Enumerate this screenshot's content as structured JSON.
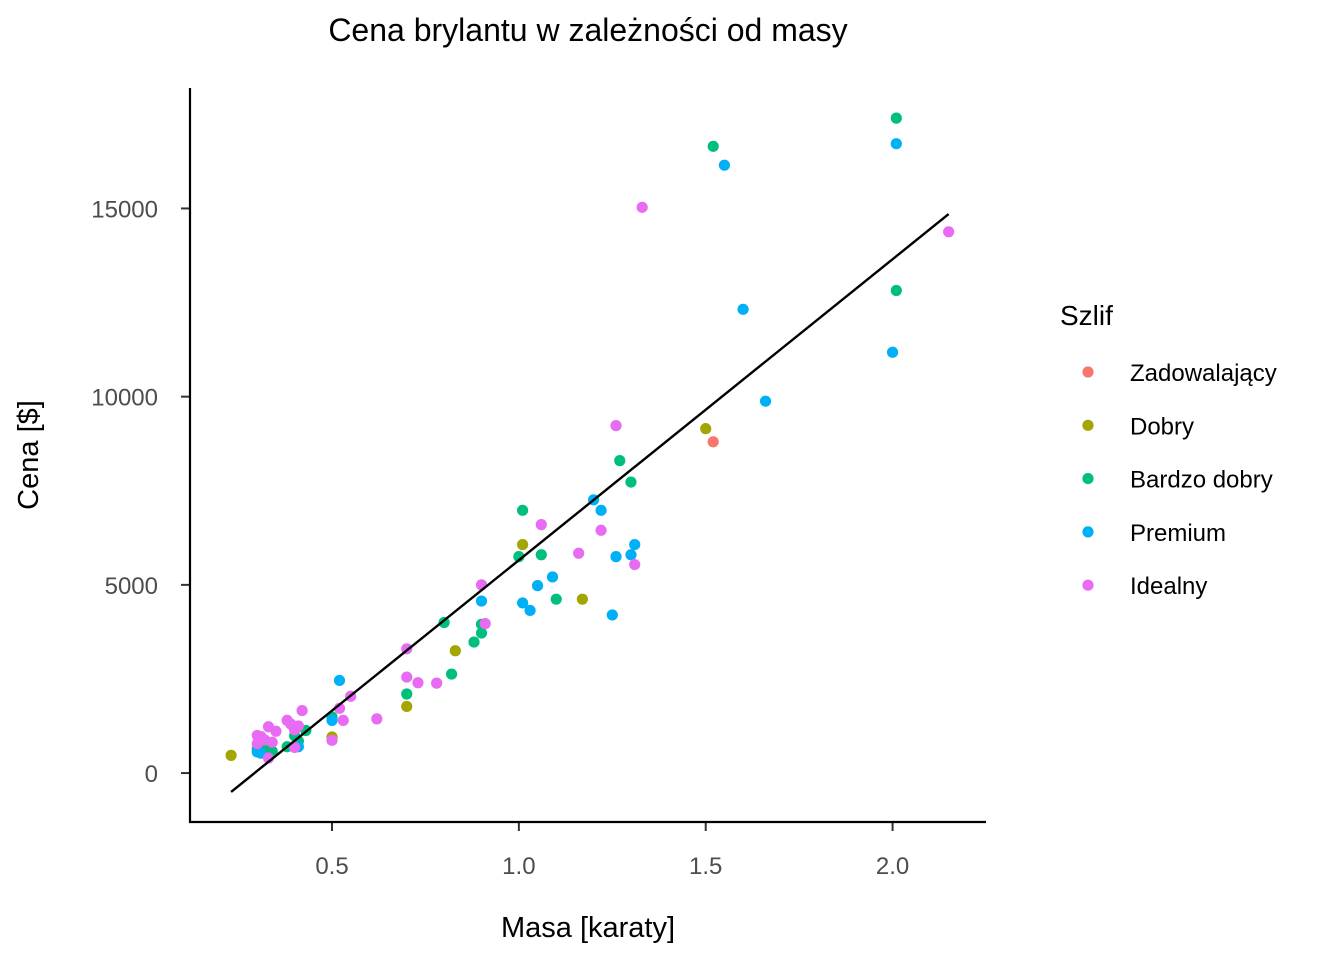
{
  "chart_data": {
    "type": "scatter",
    "title": "Cena brylantu w zależności od masy",
    "xlabel": "Masa [karaty]",
    "ylabel": "Cena [$]",
    "xlim": [
      0.12,
      2.25
    ],
    "ylim": [
      -1300,
      18200
    ],
    "x_ticks": [
      0.5,
      1.0,
      1.5,
      2.0
    ],
    "x_tick_labels": [
      "0.5",
      "1.0",
      "1.5",
      "2.0"
    ],
    "y_ticks": [
      0,
      5000,
      10000,
      15000
    ],
    "y_tick_labels": [
      "0",
      "5000",
      "10000",
      "15000"
    ],
    "grid": false,
    "legend": {
      "title": "Szlif",
      "position": "right"
    },
    "trend_line": {
      "type": "linear",
      "from": [
        0.23,
        -500
      ],
      "to": [
        2.15,
        14850
      ],
      "color": "#000000"
    },
    "series": [
      {
        "name": "Zadowalający",
        "color": "#F8766D",
        "points": [
          [
            1.52,
            8800
          ]
        ]
      },
      {
        "name": "Dobry",
        "color": "#A3A500",
        "points": [
          [
            0.23,
            470
          ],
          [
            0.5,
            930
          ],
          [
            0.5,
            960
          ],
          [
            0.7,
            1770
          ],
          [
            0.83,
            3250
          ],
          [
            1.01,
            6070
          ],
          [
            1.17,
            4620
          ],
          [
            1.5,
            9150
          ]
        ]
      },
      {
        "name": "Bardzo dobry",
        "color": "#00BF7D",
        "points": [
          [
            0.3,
            640
          ],
          [
            0.31,
            600
          ],
          [
            0.32,
            680
          ],
          [
            0.34,
            580
          ],
          [
            0.38,
            700
          ],
          [
            0.4,
            990
          ],
          [
            0.41,
            850
          ],
          [
            0.43,
            1130
          ],
          [
            0.5,
            1490
          ],
          [
            0.7,
            2100
          ],
          [
            0.8,
            4000
          ],
          [
            0.82,
            2630
          ],
          [
            0.88,
            3480
          ],
          [
            0.9,
            3950
          ],
          [
            0.9,
            3720
          ],
          [
            1.0,
            5750
          ],
          [
            1.01,
            6980
          ],
          [
            1.06,
            5800
          ],
          [
            1.1,
            4620
          ],
          [
            1.27,
            8300
          ],
          [
            1.3,
            7730
          ],
          [
            1.52,
            16650
          ],
          [
            2.01,
            17400
          ],
          [
            2.01,
            12820
          ]
        ]
      },
      {
        "name": "Premium",
        "color": "#00B0F6",
        "points": [
          [
            0.3,
            560
          ],
          [
            0.31,
            530
          ],
          [
            0.4,
            700
          ],
          [
            0.41,
            700
          ],
          [
            0.5,
            1400
          ],
          [
            0.52,
            2460
          ],
          [
            0.9,
            4570
          ],
          [
            1.01,
            4520
          ],
          [
            1.03,
            4320
          ],
          [
            1.05,
            4980
          ],
          [
            1.09,
            5210
          ],
          [
            1.2,
            7260
          ],
          [
            1.22,
            6980
          ],
          [
            1.25,
            4200
          ],
          [
            1.26,
            5750
          ],
          [
            1.3,
            5800
          ],
          [
            1.31,
            6070
          ],
          [
            1.55,
            16150
          ],
          [
            1.6,
            12320
          ],
          [
            1.66,
            9880
          ],
          [
            2.0,
            11180
          ],
          [
            2.01,
            16720
          ]
        ]
      },
      {
        "name": "Idealny",
        "color": "#E76BF3",
        "points": [
          [
            0.3,
            1000
          ],
          [
            0.3,
            780
          ],
          [
            0.31,
            970
          ],
          [
            0.32,
            880
          ],
          [
            0.33,
            1230
          ],
          [
            0.33,
            400
          ],
          [
            0.34,
            820
          ],
          [
            0.35,
            1110
          ],
          [
            0.38,
            1400
          ],
          [
            0.39,
            1300
          ],
          [
            0.4,
            1150
          ],
          [
            0.4,
            680
          ],
          [
            0.41,
            1250
          ],
          [
            0.42,
            1660
          ],
          [
            0.5,
            870
          ],
          [
            0.52,
            1720
          ],
          [
            0.53,
            1400
          ],
          [
            0.55,
            2040
          ],
          [
            0.62,
            1440
          ],
          [
            0.7,
            3300
          ],
          [
            0.7,
            2550
          ],
          [
            0.73,
            2400
          ],
          [
            0.78,
            2390
          ],
          [
            0.9,
            5000
          ],
          [
            0.91,
            3970
          ],
          [
            1.06,
            6600
          ],
          [
            1.16,
            5840
          ],
          [
            1.22,
            6450
          ],
          [
            1.26,
            9230
          ],
          [
            1.31,
            5540
          ],
          [
            1.33,
            15030
          ],
          [
            2.15,
            14380
          ]
        ]
      }
    ]
  }
}
